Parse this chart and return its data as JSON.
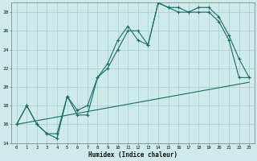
{
  "xlabel": "Humidex (Indice chaleur)",
  "bg_color": "#ceeaea",
  "grid_color": "#aed0d0",
  "line_color": "#1a6b6b",
  "xlim": [
    -0.5,
    23.5
  ],
  "ylim": [
    14,
    29
  ],
  "x_ticks": [
    0,
    1,
    2,
    3,
    4,
    5,
    6,
    7,
    8,
    9,
    10,
    11,
    12,
    13,
    14,
    15,
    16,
    17,
    18,
    19,
    20,
    21,
    22,
    23
  ],
  "y_ticks": [
    14,
    16,
    18,
    20,
    22,
    24,
    26,
    28
  ],
  "series1_x": [
    0,
    1,
    2,
    3,
    4,
    5,
    6,
    7,
    8,
    9,
    10,
    11,
    12,
    13,
    14,
    15,
    16,
    17,
    18,
    19,
    20,
    21,
    22,
    23
  ],
  "series1_y": [
    16,
    18,
    16,
    15,
    15,
    19,
    17.5,
    18,
    21,
    22.5,
    25,
    26.5,
    25,
    24.5,
    29,
    28.5,
    28,
    28,
    28,
    28,
    27,
    25,
    21,
    21
  ],
  "series2_x": [
    0,
    1,
    2,
    3,
    4,
    5,
    6,
    7,
    8,
    9,
    10,
    11,
    12,
    13,
    14,
    15,
    16,
    17,
    18,
    19,
    20,
    21,
    22,
    23
  ],
  "series2_y": [
    16,
    18,
    16,
    15,
    14.5,
    19,
    17,
    17,
    21,
    22,
    24,
    26,
    26,
    24.5,
    29,
    28.5,
    28.5,
    28,
    28.5,
    28.5,
    27.5,
    25.5,
    23,
    21
  ],
  "series3_x": [
    0,
    23
  ],
  "series3_y": [
    16,
    20.5
  ]
}
